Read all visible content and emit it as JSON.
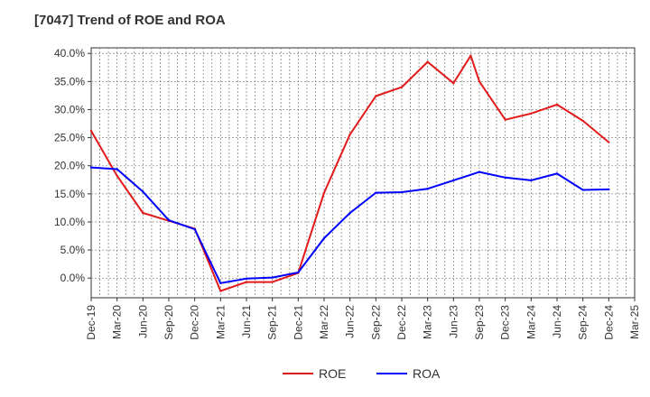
{
  "chart_data": {
    "type": "line",
    "title": "[7047]  Trend of ROE and ROA",
    "x_ticks": [
      "Dec-19",
      "Mar-20",
      "Jun-20",
      "Sep-20",
      "Dec-20",
      "Mar-21",
      "Jun-21",
      "Sep-21",
      "Dec-21",
      "Mar-22",
      "Jun-22",
      "Sep-22",
      "Dec-22",
      "Mar-23",
      "Jun-23",
      "Sep-23",
      "Dec-23",
      "Mar-24",
      "Jun-24",
      "Sep-24",
      "Dec-24",
      "Mar-25"
    ],
    "y_ticks": [
      "0.0%",
      "5.0%",
      "10.0%",
      "15.0%",
      "20.0%",
      "25.0%",
      "30.0%",
      "35.0%",
      "40.0%"
    ],
    "ylim": [
      -3.5,
      41.0
    ],
    "grid": true,
    "legend_position": "bottom",
    "series": [
      {
        "name": "ROE",
        "color": "#e31a1c",
        "points": [
          [
            "Dec-19",
            26.2
          ],
          [
            "Mar-20",
            18.2
          ],
          [
            "Jun-20",
            11.6
          ],
          [
            "Sep-20",
            10.2
          ],
          [
            "Dec-20",
            8.8
          ],
          [
            "Mar-21",
            -2.3
          ],
          [
            "Jun-21",
            -0.7
          ],
          [
            "Sep-21",
            -0.7
          ],
          [
            "Dec-21",
            0.9
          ],
          [
            "Mar-22",
            15.2
          ],
          [
            "Jun-22",
            25.6
          ],
          [
            "Sep-22",
            32.4
          ],
          [
            "Dec-22",
            34.0
          ],
          [
            "Mar-23",
            38.5
          ],
          [
            "Jun-23",
            34.7
          ],
          [
            "Aug-23",
            39.6
          ],
          [
            "Sep-23",
            35.0
          ],
          [
            "Dec-23",
            28.2
          ],
          [
            "Mar-24",
            29.3
          ],
          [
            "Jun-24",
            30.9
          ],
          [
            "Sep-24",
            28.0
          ],
          [
            "Dec-24",
            24.2
          ]
        ]
      },
      {
        "name": "ROA",
        "color": "#0000ff",
        "points": [
          [
            "Dec-19",
            19.7
          ],
          [
            "Mar-20",
            19.4
          ],
          [
            "Jun-20",
            15.4
          ],
          [
            "Sep-20",
            10.3
          ],
          [
            "Dec-20",
            8.7
          ],
          [
            "Mar-21",
            -0.9
          ],
          [
            "Jun-21",
            -0.1
          ],
          [
            "Sep-21",
            0.1
          ],
          [
            "Dec-21",
            1.0
          ],
          [
            "Mar-22",
            7.1
          ],
          [
            "Jun-22",
            11.6
          ],
          [
            "Sep-22",
            15.2
          ],
          [
            "Dec-22",
            15.3
          ],
          [
            "Mar-23",
            15.9
          ],
          [
            "Jun-23",
            17.4
          ],
          [
            "Sep-23",
            18.9
          ],
          [
            "Dec-23",
            17.9
          ],
          [
            "Mar-24",
            17.4
          ],
          [
            "Jun-24",
            18.6
          ],
          [
            "Sep-24",
            15.7
          ],
          [
            "Dec-24",
            15.8
          ]
        ]
      }
    ]
  }
}
